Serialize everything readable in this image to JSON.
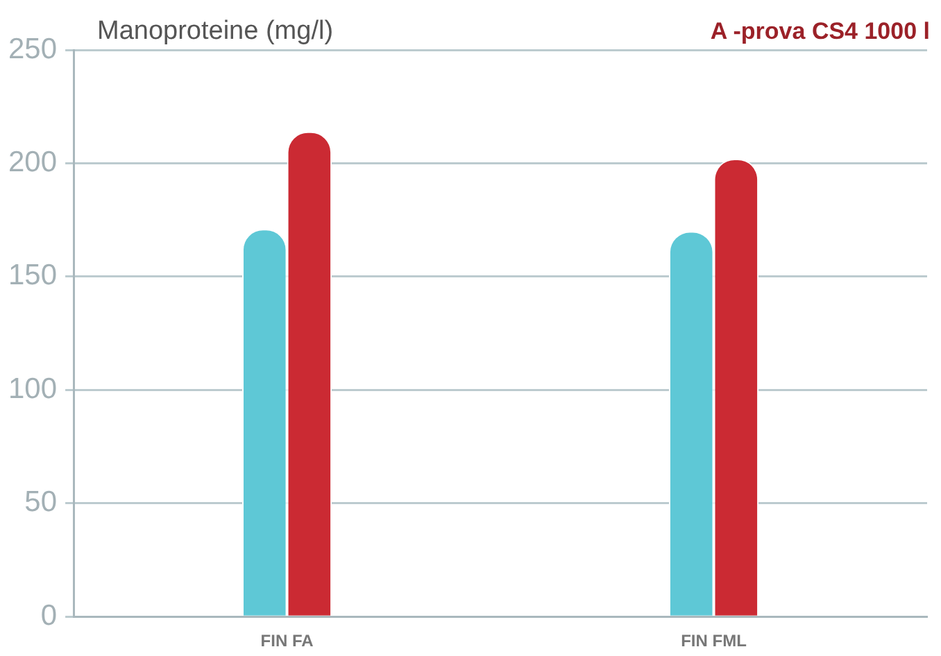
{
  "chart_data": {
    "type": "bar",
    "title": "A -prova CS4 1000 l",
    "ylabel": "Manoproteine (mg/l)",
    "categories": [
      "FIN FA",
      "FIN FML"
    ],
    "series": [
      {
        "color": "#5ec8d6",
        "values": [
          171,
          170
        ]
      },
      {
        "color": "#cb2a33",
        "values": [
          214,
          202
        ]
      }
    ],
    "ylim": [
      0,
      250
    ],
    "yticks": [
      0,
      50,
      100,
      150,
      200,
      250
    ],
    "grid": "y",
    "legend": false
  }
}
